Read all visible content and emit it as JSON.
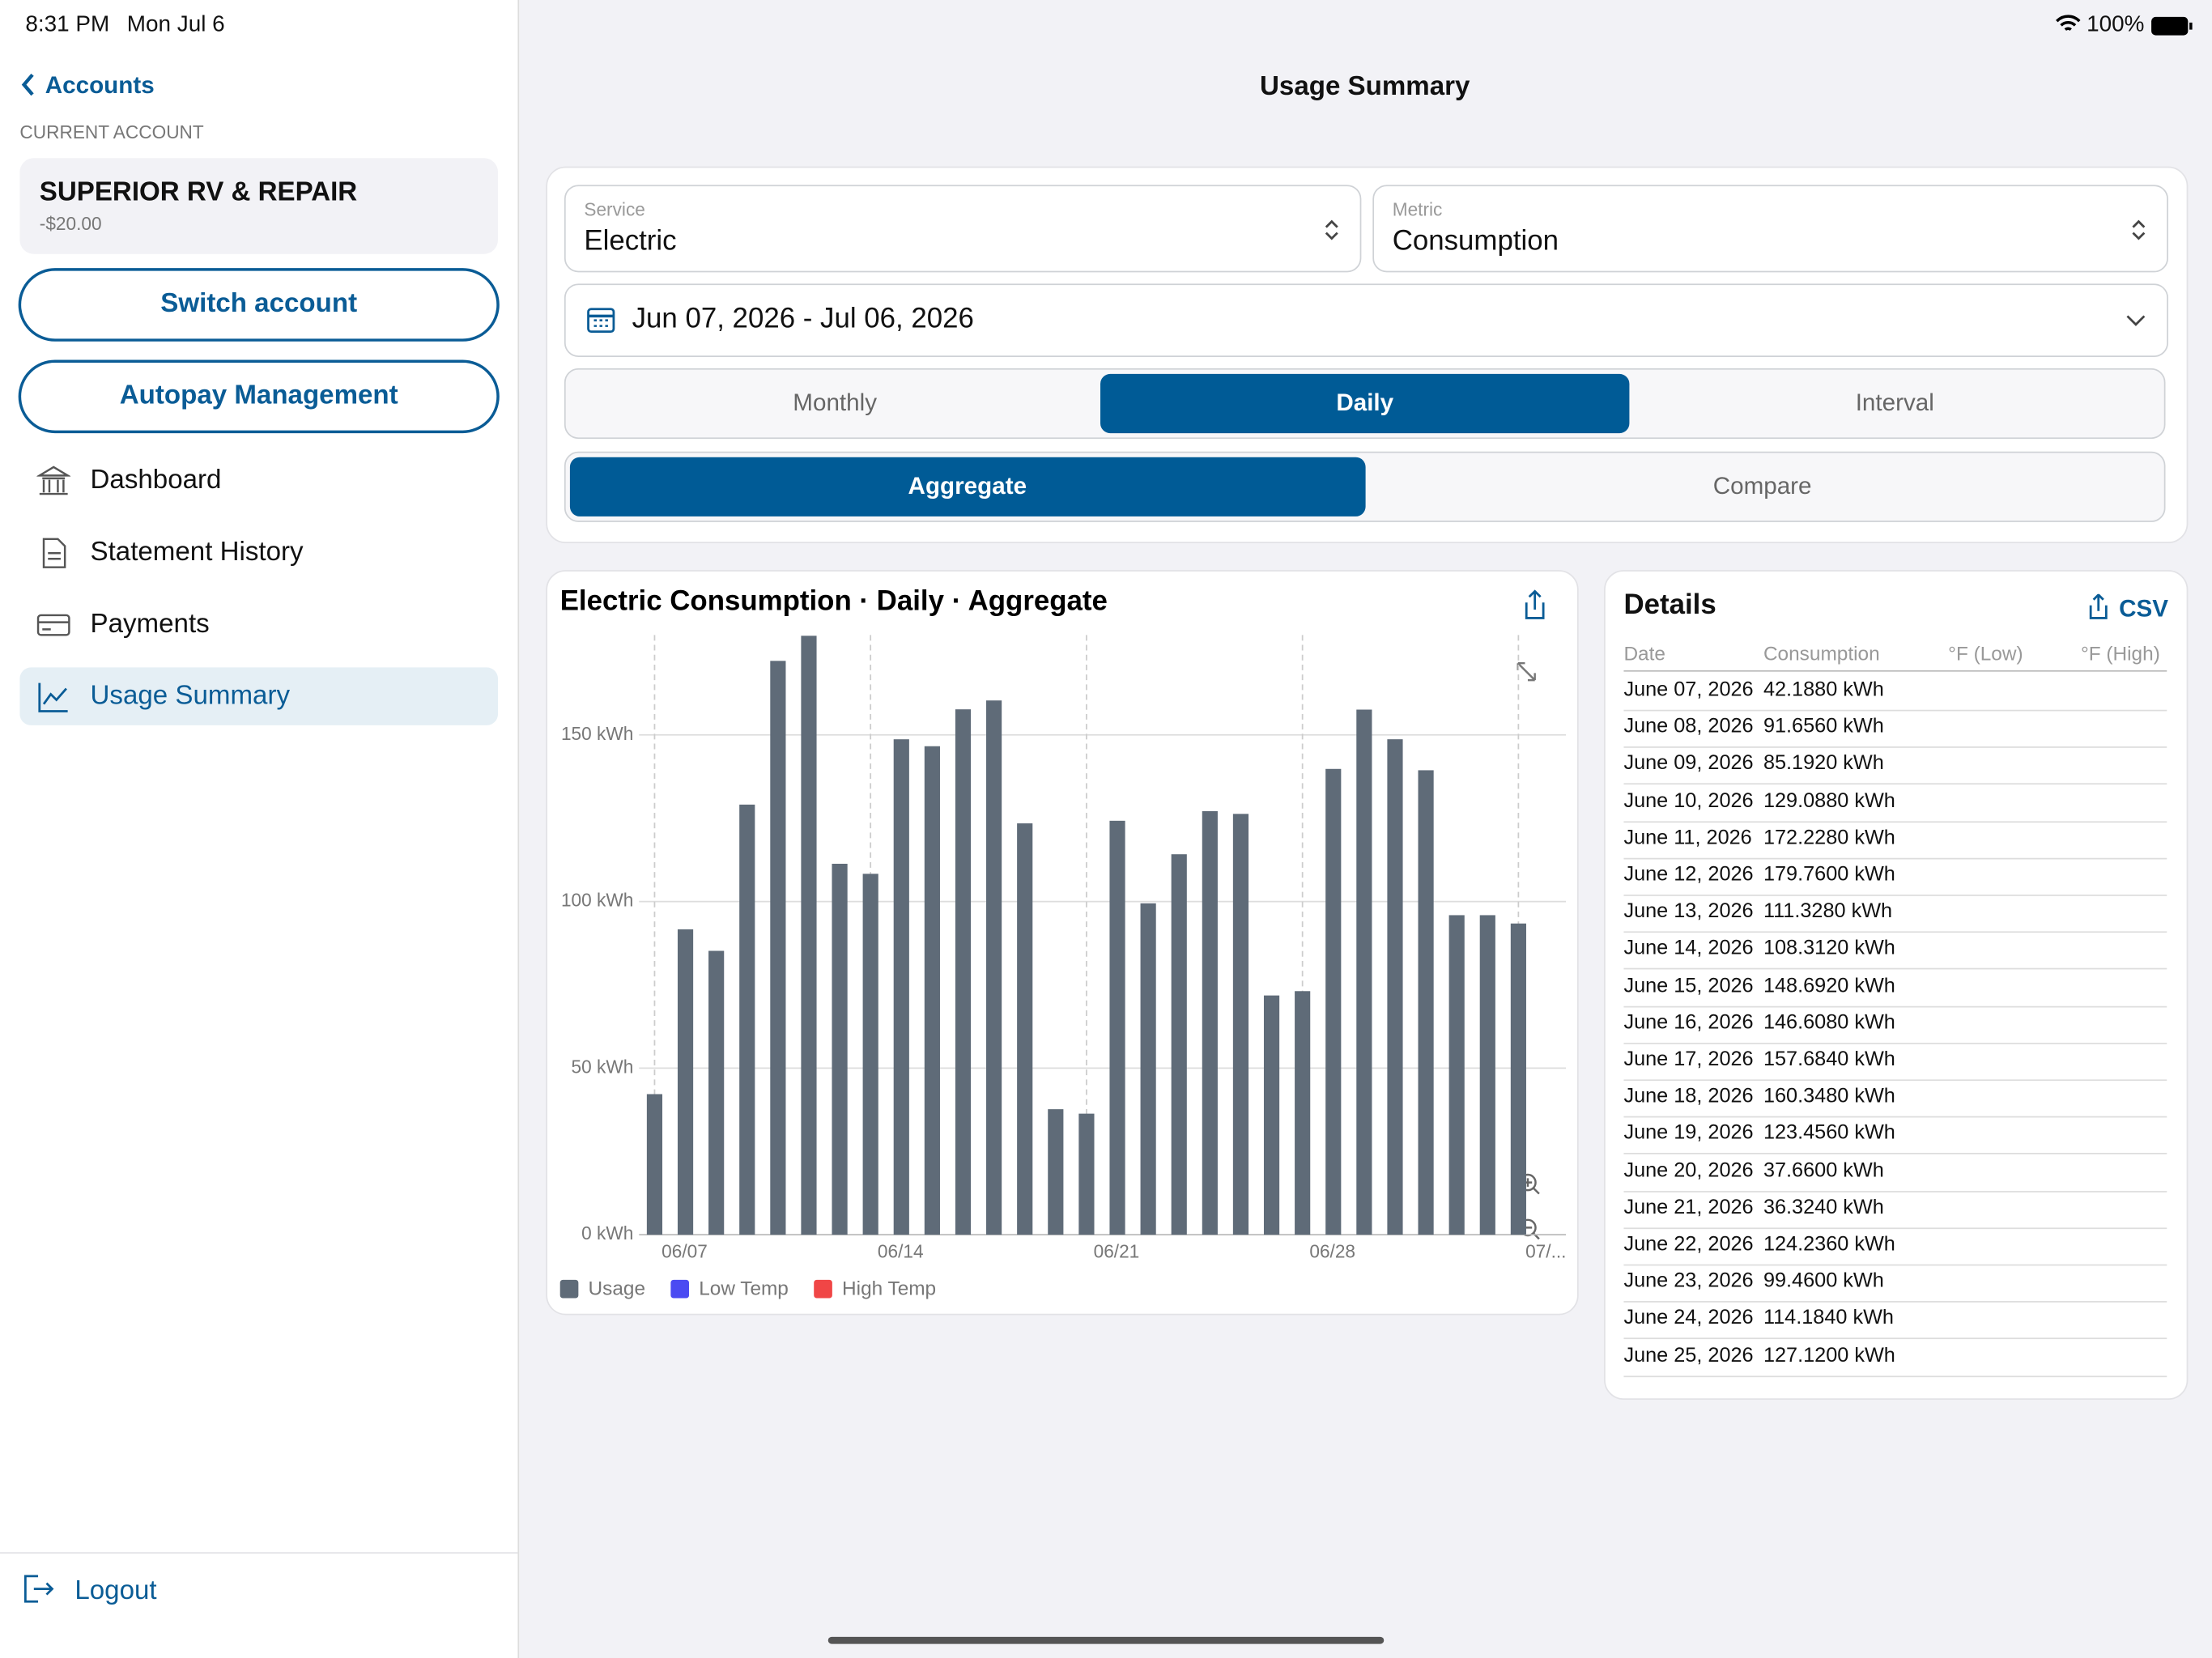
{
  "status": {
    "time": "8:31 PM",
    "date": "Mon Jul 6",
    "battery": "100%"
  },
  "sidebar": {
    "back": "Accounts",
    "section": "CURRENT ACCOUNT",
    "account": {
      "name": "SUPERIOR RV & REPAIR",
      "balance": "-$20.00"
    },
    "buttons": [
      "Switch account",
      "Autopay Management"
    ],
    "nav": [
      "Dashboard",
      "Statement History",
      "Payments",
      "Usage Summary"
    ],
    "nav_selected": 3,
    "logout": "Logout"
  },
  "header": {
    "title": "Usage Summary"
  },
  "filters": {
    "service": {
      "label": "Service",
      "value": "Electric"
    },
    "metric": {
      "label": "Metric",
      "value": "Consumption"
    },
    "date_range": "Jun 07, 2026 - Jul 06, 2026",
    "period_tabs": [
      "Monthly",
      "Daily",
      "Interval"
    ],
    "period_selected": 1,
    "mode_tabs": [
      "Aggregate",
      "Compare"
    ],
    "mode_selected": 0
  },
  "chart_data": {
    "type": "bar",
    "title": "Electric Consumption · Daily · Aggregate",
    "categories": [
      "06/07",
      null,
      null,
      null,
      null,
      null,
      null,
      "06/14",
      null,
      null,
      null,
      null,
      null,
      null,
      "06/21",
      null,
      null,
      null,
      null,
      null,
      null,
      "06/28",
      null,
      null,
      null,
      null,
      null,
      null,
      "07/..."
    ],
    "series": [
      {
        "name": "Usage",
        "color": "#5f6b78",
        "values": [
          42.188,
          91.656,
          85.192,
          129.088,
          172.228,
          179.76,
          111.328,
          108.312,
          148.692,
          146.608,
          157.684,
          160.348,
          123.456,
          37.66,
          36.324,
          124.236,
          99.46,
          114.184,
          127.12,
          126.3,
          71.8,
          73.1,
          139.8,
          157.6,
          148.7,
          139.4,
          95.9,
          95.9,
          93.4
        ]
      }
    ],
    "legend_extra": [
      {
        "name": "Low Temp",
        "color": "#4b4bf2"
      },
      {
        "name": "High Temp",
        "color": "#f04646"
      }
    ],
    "ylim": [
      0,
      180
    ],
    "yticks": [
      {
        "value": 0,
        "label": "0 kWh"
      },
      {
        "value": 50,
        "label": "50 kWh"
      },
      {
        "value": 100,
        "label": "100 kWh"
      },
      {
        "value": 150,
        "label": "150 kWh"
      }
    ],
    "grid": true
  },
  "details": {
    "title": "Details",
    "export": "CSV",
    "columns": [
      "Date",
      "Consumption",
      "°F (Low)",
      "°F (High)"
    ],
    "rows": [
      [
        "June 07, 2026",
        "42.1880 kWh"
      ],
      [
        "June 08, 2026",
        "91.6560 kWh"
      ],
      [
        "June 09, 2026",
        "85.1920 kWh"
      ],
      [
        "June 10, 2026",
        "129.0880 kWh"
      ],
      [
        "June 11, 2026",
        "172.2280 kWh"
      ],
      [
        "June 12, 2026",
        "179.7600 kWh"
      ],
      [
        "June 13, 2026",
        "111.3280 kWh"
      ],
      [
        "June 14, 2026",
        "108.3120 kWh"
      ],
      [
        "June 15, 2026",
        "148.6920 kWh"
      ],
      [
        "June 16, 2026",
        "146.6080 kWh"
      ],
      [
        "June 17, 2026",
        "157.6840 kWh"
      ],
      [
        "June 18, 2026",
        "160.3480 kWh"
      ],
      [
        "June 19, 2026",
        "123.4560 kWh"
      ],
      [
        "June 20, 2026",
        "37.6600 kWh"
      ],
      [
        "June 21, 2026",
        "36.3240 kWh"
      ],
      [
        "June 22, 2026",
        "124.2360 kWh"
      ],
      [
        "June 23, 2026",
        "99.4600 kWh"
      ],
      [
        "June 24, 2026",
        "114.1840 kWh"
      ],
      [
        "June 25, 2026",
        "127.1200 kWh"
      ]
    ]
  }
}
